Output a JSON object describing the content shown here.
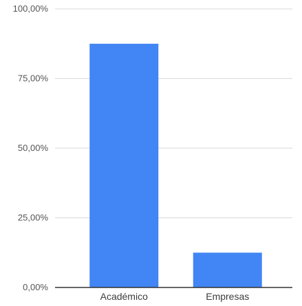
{
  "chart_data": {
    "type": "bar",
    "title": "",
    "xlabel": "",
    "ylabel": "",
    "categories": [
      "Académico",
      "Empresas"
    ],
    "values": [
      87.5,
      12.5
    ],
    "ylim": [
      0,
      100
    ],
    "y_ticks": [
      0,
      25,
      50,
      75,
      100
    ],
    "y_tick_labels": [
      "0,00%",
      "25,00%",
      "50,00%",
      "75,00%",
      "100,00%"
    ],
    "grid": true,
    "legend": "none",
    "colors": {
      "bar": "#4285f4",
      "grid": "#d9d9d9",
      "axis": "#333333"
    }
  }
}
